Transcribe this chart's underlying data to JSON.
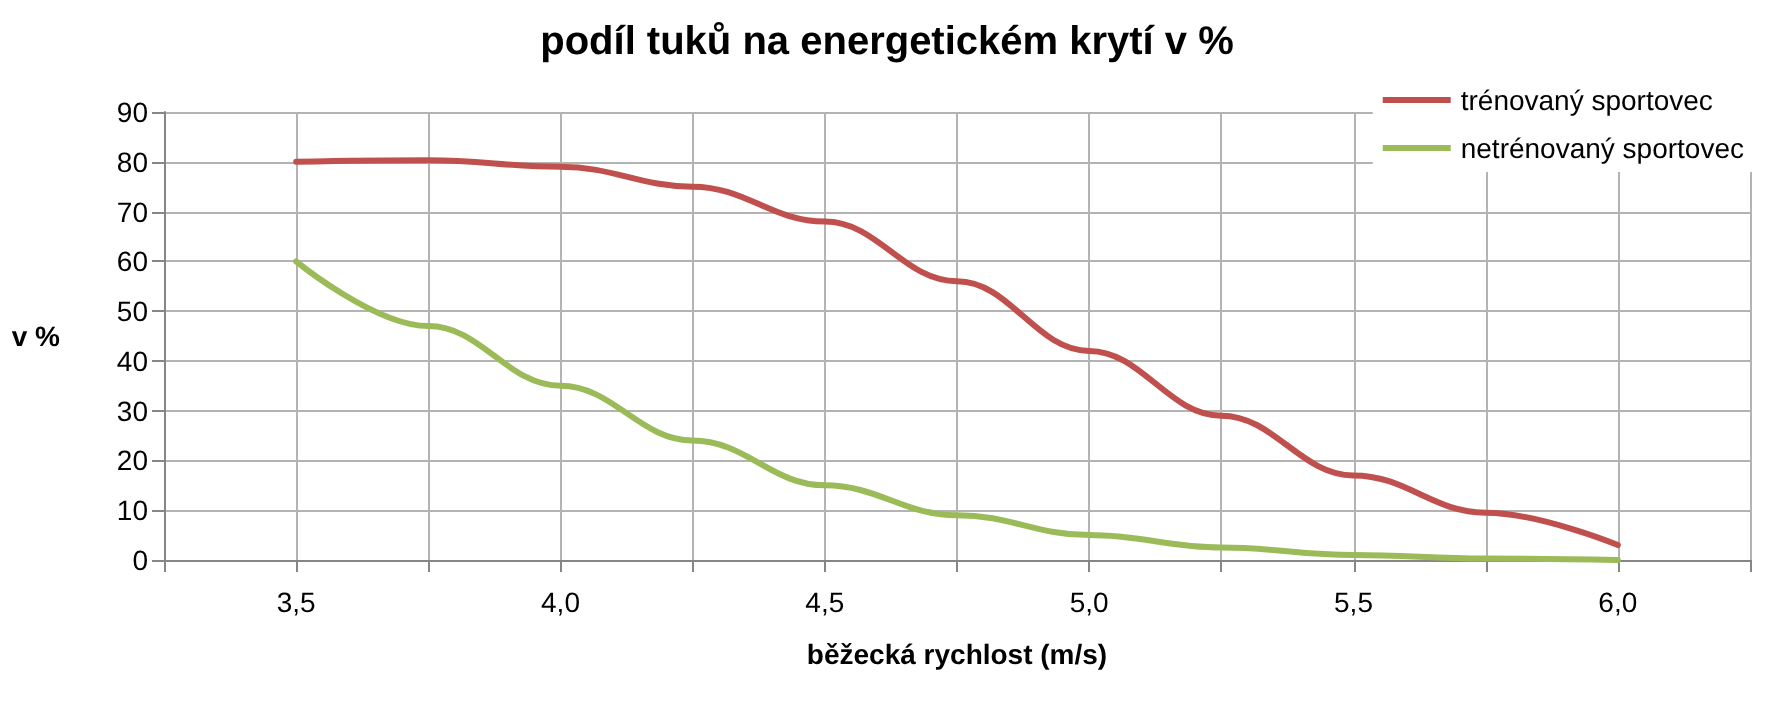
{
  "chart_data": {
    "type": "line",
    "title": "podíl tuků na energetickém krytí v %",
    "xlabel": "běžecká rychlost (m/s)",
    "ylabel": "v %",
    "x": [
      3.5,
      3.75,
      4.0,
      4.25,
      4.5,
      4.75,
      5.0,
      5.25,
      5.5,
      5.75,
      6.0
    ],
    "series": [
      {
        "name": "trénovaný sportovec",
        "color": "#c0504d",
        "values": [
          80,
          80.3,
          79,
          75,
          68,
          56,
          42,
          29,
          17,
          9.5,
          3
        ]
      },
      {
        "name": "netrénovaný sportovec",
        "color": "#9bbb59",
        "values": [
          60,
          47,
          35,
          24,
          15,
          9,
          5,
          2.5,
          1,
          0.3,
          0
        ]
      }
    ],
    "xlim": [
      3.25,
      6.25
    ],
    "xticks": [
      {
        "value": 3.25,
        "label": null
      },
      {
        "value": 3.5,
        "label": "3,5"
      },
      {
        "value": 3.75,
        "label": null
      },
      {
        "value": 4.0,
        "label": "4,0"
      },
      {
        "value": 4.25,
        "label": null
      },
      {
        "value": 4.5,
        "label": "4,5"
      },
      {
        "value": 4.75,
        "label": null
      },
      {
        "value": 5.0,
        "label": "5,0"
      },
      {
        "value": 5.25,
        "label": null
      },
      {
        "value": 5.5,
        "label": "5,5"
      },
      {
        "value": 5.75,
        "label": null
      },
      {
        "value": 6.0,
        "label": "6,0"
      },
      {
        "value": 6.25,
        "label": null
      }
    ],
    "ylim": [
      0,
      90
    ],
    "yticks": [
      0,
      10,
      20,
      30,
      40,
      50,
      60,
      70,
      80,
      90
    ],
    "grid": true,
    "legend": "top right",
    "marker": "none",
    "line_style": "solid"
  }
}
